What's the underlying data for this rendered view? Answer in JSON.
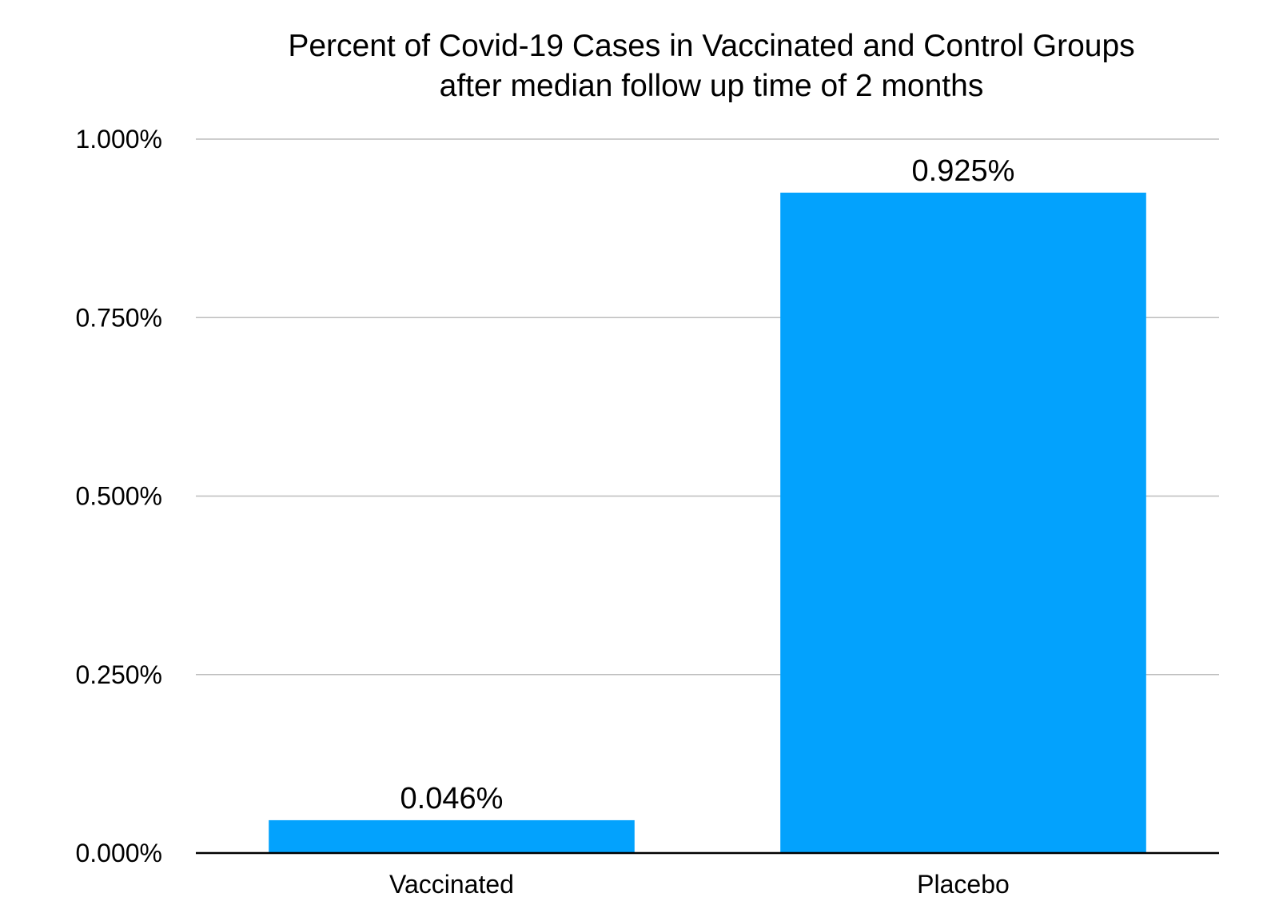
{
  "chart_data": {
    "type": "bar",
    "title_lines": [
      "Percent of Covid-19 Cases in Vaccinated and Control Groups",
      "after median follow up time of 2 months"
    ],
    "categories": [
      "Vaccinated",
      "Placebo"
    ],
    "values": [
      0.046,
      0.925
    ],
    "value_labels": [
      "0.046%",
      "0.925%"
    ],
    "xlabel": "",
    "ylabel": "",
    "ylim": [
      0,
      1.0
    ],
    "yticks": [
      0.0,
      0.25,
      0.5,
      0.75,
      1.0
    ],
    "ytick_labels": [
      "0.000%",
      "0.250%",
      "0.500%",
      "0.750%",
      "1.000%"
    ],
    "grid": true,
    "legend": "none",
    "bar_color": "#03A2FD",
    "grid_color": "#BDBDBD",
    "axis_color": "#000000"
  }
}
